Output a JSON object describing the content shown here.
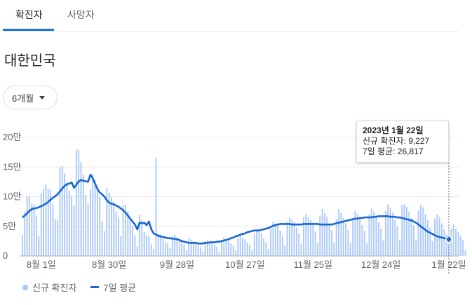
{
  "tabs": [
    {
      "label": "확진자",
      "active": true
    },
    {
      "label": "사망자",
      "active": false
    }
  ],
  "region": "대한민국",
  "range_select": {
    "value": "6개월"
  },
  "tooltip": {
    "date": "2023년 1월 22일",
    "cases_label": "신규 확진자: 9,227",
    "avg_label": "7일 평균: 26,817"
  },
  "legend": {
    "cases": "신규 확진자",
    "average": "7일 평균"
  },
  "colors": {
    "bar": "#a8c7fa",
    "line": "#1967d2",
    "accent": "#1a73e8"
  },
  "chart_data": {
    "type": "bar",
    "y_ticks": [
      "0",
      "5만",
      "10만",
      "15만",
      "20만"
    ],
    "ylim": [
      0,
      200000
    ],
    "x_ticks": [
      "8월 1일",
      "8월 30일",
      "9월 28일",
      "10월 27일",
      "11월 25일",
      "12월 24일",
      "1월 22일"
    ],
    "x_tick_days": [
      8,
      37,
      66,
      95,
      124,
      153,
      182
    ],
    "days": 183,
    "series": [
      {
        "name": "신규 확진자",
        "type": "bar",
        "values": [
          35000,
          75000,
          100000,
          101000,
          89000,
          87000,
          68000,
          33000,
          106000,
          113000,
          120000,
          113000,
          112000,
          87000,
          62000,
          60000,
          150000,
          152000,
          139000,
          125000,
          110000,
          101000,
          85000,
          180000,
          179000,
          158000,
          137000,
          103000,
          88000,
          112000,
          138000,
          128000,
          110000,
          100000,
          59000,
          42000,
          115000,
          107000,
          100000,
          92000,
          75000,
          64000,
          34000,
          86000,
          87000,
          75000,
          64000,
          51000,
          35000,
          16000,
          70000,
          61000,
          40000,
          35000,
          34000,
          20000,
          12000,
          165000,
          37000,
          36000,
          29000,
          23000,
          22000,
          13000,
          34000,
          36000,
          31000,
          27000,
          22000,
          19000,
          9000,
          30000,
          28000,
          25000,
          22000,
          18000,
          15000,
          7000,
          25000,
          27000,
          24000,
          22000,
          18000,
          15000,
          6000,
          25000,
          31000,
          27000,
          25000,
          21000,
          17000,
          9000,
          30000,
          34000,
          31000,
          28000,
          23000,
          19000,
          10000,
          38000,
          45000,
          42000,
          38000,
          30000,
          23000,
          12000,
          45000,
          58000,
          55000,
          51000,
          43000,
          34000,
          17000,
          58000,
          64000,
          61000,
          57000,
          48000,
          38000,
          20000,
          65000,
          70000,
          65000,
          61000,
          52000,
          41000,
          22000,
          68000,
          79000,
          72000,
          66000,
          55000,
          43000,
          23000,
          62000,
          79000,
          73000,
          64000,
          55000,
          44000,
          22000,
          61000,
          76000,
          71000,
          62000,
          52000,
          42000,
          21000,
          71000,
          80000,
          75000,
          67000,
          57000,
          46000,
          26000,
          76000,
          87000,
          82000,
          73000,
          61000,
          49000,
          27000,
          86000,
          87000,
          83000,
          75000,
          64000,
          52000,
          28000,
          77000,
          86000,
          82000,
          71000,
          60000,
          48000,
          25000,
          63000,
          70000,
          66000,
          55000,
          45000,
          36000,
          18000,
          46000,
          53000,
          46000,
          40000,
          34000,
          27000,
          9227
        ]
      },
      {
        "name": "7일 평균",
        "type": "line",
        "values": [
          65000,
          68000,
          72000,
          76000,
          79000,
          80000,
          81000,
          82000,
          84000,
          86000,
          88000,
          91000,
          95000,
          98000,
          101000,
          104000,
          109000,
          114000,
          118000,
          121000,
          122000,
          124000,
          115000,
          120000,
          126000,
          128000,
          127000,
          126000,
          125000,
          137000,
          131000,
          122000,
          113000,
          107000,
          104000,
          100000,
          94000,
          90000,
          88000,
          87000,
          85000,
          83000,
          80000,
          77000,
          73000,
          68000,
          63000,
          58000,
          53000,
          45000,
          56000,
          55000,
          56000,
          52000,
          58000,
          45000,
          38000,
          36000,
          34000,
          33000,
          32000,
          31000,
          30000,
          30000,
          29000,
          29000,
          28000,
          27000,
          25000,
          24000,
          23000,
          22000,
          22000,
          22000,
          22000,
          21000,
          21000,
          21000,
          22000,
          22000,
          23000,
          23000,
          23000,
          24000,
          24000,
          25000,
          26000,
          27000,
          28000,
          30000,
          31000,
          33000,
          34000,
          36000,
          37000,
          38000,
          40000,
          41000,
          42000,
          43000,
          43000,
          43000,
          44000,
          45000,
          46000,
          47000,
          49000,
          51000,
          52000,
          53000,
          54000,
          54000,
          54000,
          54000,
          54000,
          53000,
          53000,
          53000,
          53000,
          53000,
          54000,
          54000,
          54000,
          54000,
          54000,
          54000,
          54000,
          53000,
          53000,
          53000,
          53000,
          53000,
          53000,
          54000,
          55000,
          56000,
          57000,
          58000,
          59000,
          60000,
          61000,
          62000,
          63000,
          63000,
          64000,
          64000,
          65000,
          65000,
          65000,
          65000,
          66000,
          66000,
          67000,
          67000,
          67000,
          67000,
          67000,
          66000,
          66000,
          66000,
          65000,
          65000,
          64000,
          63000,
          62000,
          61000,
          60000,
          58000,
          56000,
          53000,
          50000,
          47000,
          44000,
          41000,
          39000,
          37000,
          35000,
          33000,
          32000,
          31000,
          30000,
          29000,
          28000,
          26817
        ]
      }
    ],
    "legend_position": "bottom-left",
    "grid": true
  }
}
